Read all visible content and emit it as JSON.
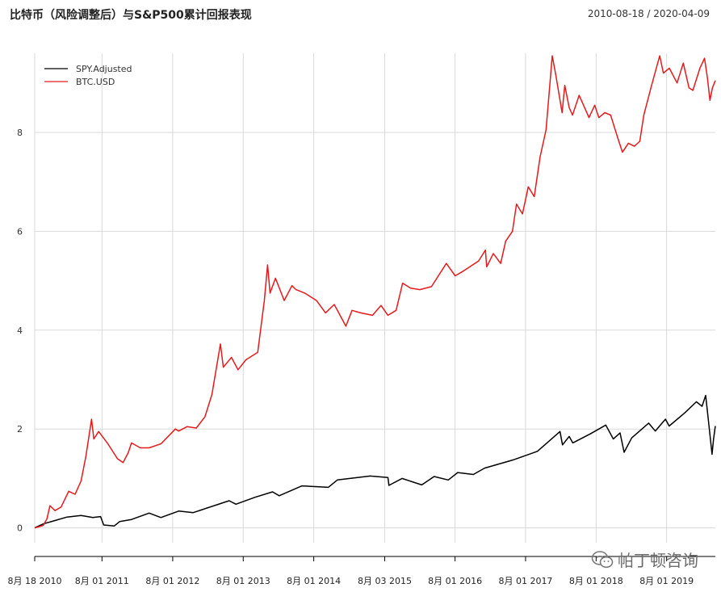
{
  "header": {
    "title": "比特币（风险调整后）与S&P500累计回报表现",
    "date_range": "2010-08-18 / 2020-04-09"
  },
  "watermark": {
    "text": "帕丁顿咨询",
    "icon": "wechat-icon"
  },
  "colors": {
    "spy": "#000000",
    "btc": "#e41a1c",
    "grid": "#d9d9d9",
    "axis": "#000000"
  },
  "chart_data": {
    "type": "line",
    "title": "比特币（风险调整后）与S&P500累计回报表现",
    "xlabel": "",
    "ylabel": "",
    "ylim": [
      -0.3,
      9.6
    ],
    "yticks": [
      0,
      2,
      4,
      6,
      8
    ],
    "grid": true,
    "legend_position": "top-left",
    "x_ticks": [
      {
        "date": "2010-08-18",
        "label": "8月 18 2010"
      },
      {
        "date": "2011-08-01",
        "label": "8月 01 2011"
      },
      {
        "date": "2012-08-01",
        "label": "8月 01 2012"
      },
      {
        "date": "2013-08-01",
        "label": "8月 01 2013"
      },
      {
        "date": "2014-08-01",
        "label": "8月 01 2014"
      },
      {
        "date": "2015-08-03",
        "label": "8月 03 2015"
      },
      {
        "date": "2016-08-01",
        "label": "8月 01 2016"
      },
      {
        "date": "2017-08-01",
        "label": "8月 01 2017"
      },
      {
        "date": "2018-08-01",
        "label": "8月 01 2018"
      },
      {
        "date": "2019-08-01",
        "label": "8月 01 2019"
      }
    ],
    "x_start": "2010-08-18",
    "x_end": "2020-04-09",
    "series": [
      {
        "name": "SPY.Adjusted",
        "color": "#000000",
        "points": [
          [
            "2010-08-18",
            0.0
          ],
          [
            "2010-10-01",
            0.08
          ],
          [
            "2010-12-01",
            0.15
          ],
          [
            "2011-02-01",
            0.22
          ],
          [
            "2011-04-15",
            0.25
          ],
          [
            "2011-06-15",
            0.21
          ],
          [
            "2011-07-25",
            0.23
          ],
          [
            "2011-08-10",
            0.06
          ],
          [
            "2011-10-04",
            0.04
          ],
          [
            "2011-11-01",
            0.13
          ],
          [
            "2012-01-01",
            0.17
          ],
          [
            "2012-04-01",
            0.3
          ],
          [
            "2012-06-01",
            0.21
          ],
          [
            "2012-09-01",
            0.34
          ],
          [
            "2012-11-15",
            0.31
          ],
          [
            "2013-01-01",
            0.37
          ],
          [
            "2013-05-20",
            0.55
          ],
          [
            "2013-06-24",
            0.48
          ],
          [
            "2013-10-01",
            0.62
          ],
          [
            "2013-12-31",
            0.73
          ],
          [
            "2014-02-03",
            0.65
          ],
          [
            "2014-06-01",
            0.85
          ],
          [
            "2014-10-15",
            0.82
          ],
          [
            "2014-12-01",
            0.97
          ],
          [
            "2015-05-20",
            1.05
          ],
          [
            "2015-08-20",
            1.02
          ],
          [
            "2015-08-25",
            0.86
          ],
          [
            "2015-11-01",
            1.0
          ],
          [
            "2016-02-11",
            0.87
          ],
          [
            "2016-04-15",
            1.04
          ],
          [
            "2016-06-27",
            0.97
          ],
          [
            "2016-08-15",
            1.12
          ],
          [
            "2016-11-04",
            1.08
          ],
          [
            "2017-01-01",
            1.21
          ],
          [
            "2017-06-01",
            1.38
          ],
          [
            "2017-10-01",
            1.55
          ],
          [
            "2018-01-26",
            1.95
          ],
          [
            "2018-02-08",
            1.68
          ],
          [
            "2018-03-15",
            1.85
          ],
          [
            "2018-04-02",
            1.72
          ],
          [
            "2018-07-01",
            1.9
          ],
          [
            "2018-09-20",
            2.08
          ],
          [
            "2018-10-29",
            1.8
          ],
          [
            "2018-12-03",
            1.92
          ],
          [
            "2018-12-24",
            1.53
          ],
          [
            "2019-02-01",
            1.82
          ],
          [
            "2019-04-30",
            2.12
          ],
          [
            "2019-06-03",
            1.96
          ],
          [
            "2019-07-26",
            2.2
          ],
          [
            "2019-08-14",
            2.06
          ],
          [
            "2019-11-01",
            2.32
          ],
          [
            "2020-01-02",
            2.55
          ],
          [
            "2020-01-31",
            2.46
          ],
          [
            "2020-02-19",
            2.68
          ],
          [
            "2020-03-02",
            2.25
          ],
          [
            "2020-03-23",
            1.49
          ],
          [
            "2020-03-31",
            1.8
          ],
          [
            "2020-04-09",
            2.06
          ]
        ]
      },
      {
        "name": "BTC.USD",
        "color": "#e41a1c",
        "points": [
          [
            "2010-08-18",
            0.0
          ],
          [
            "2010-10-01",
            0.05
          ],
          [
            "2010-10-20",
            0.18
          ],
          [
            "2010-11-05",
            0.45
          ],
          [
            "2010-12-01",
            0.35
          ],
          [
            "2011-01-01",
            0.42
          ],
          [
            "2011-02-10",
            0.74
          ],
          [
            "2011-03-15",
            0.68
          ],
          [
            "2011-04-15",
            0.95
          ],
          [
            "2011-05-10",
            1.45
          ],
          [
            "2011-06-08",
            2.2
          ],
          [
            "2011-06-20",
            1.8
          ],
          [
            "2011-07-15",
            1.95
          ],
          [
            "2011-09-01",
            1.7
          ],
          [
            "2011-10-20",
            1.4
          ],
          [
            "2011-11-18",
            1.32
          ],
          [
            "2011-12-15",
            1.52
          ],
          [
            "2012-01-01",
            1.72
          ],
          [
            "2012-02-15",
            1.62
          ],
          [
            "2012-04-01",
            1.62
          ],
          [
            "2012-06-01",
            1.7
          ],
          [
            "2012-08-15",
            2.0
          ],
          [
            "2012-09-01",
            1.96
          ],
          [
            "2012-10-15",
            2.05
          ],
          [
            "2012-12-01",
            2.02
          ],
          [
            "2013-01-15",
            2.25
          ],
          [
            "2013-02-20",
            2.7
          ],
          [
            "2013-04-05",
            3.72
          ],
          [
            "2013-04-20",
            3.25
          ],
          [
            "2013-06-01",
            3.45
          ],
          [
            "2013-07-05",
            3.2
          ],
          [
            "2013-08-15",
            3.4
          ],
          [
            "2013-10-15",
            3.55
          ],
          [
            "2013-11-18",
            4.6
          ],
          [
            "2013-12-05",
            5.32
          ],
          [
            "2013-12-18",
            4.75
          ],
          [
            "2014-01-15",
            5.05
          ],
          [
            "2014-03-01",
            4.6
          ],
          [
            "2014-04-10",
            4.9
          ],
          [
            "2014-05-01",
            4.82
          ],
          [
            "2014-06-15",
            4.75
          ],
          [
            "2014-08-15",
            4.6
          ],
          [
            "2014-10-01",
            4.35
          ],
          [
            "2014-11-15",
            4.52
          ],
          [
            "2015-01-14",
            4.08
          ],
          [
            "2015-02-15",
            4.4
          ],
          [
            "2015-04-01",
            4.35
          ],
          [
            "2015-06-01",
            4.3
          ],
          [
            "2015-07-15",
            4.5
          ],
          [
            "2015-08-20",
            4.3
          ],
          [
            "2015-10-01",
            4.4
          ],
          [
            "2015-11-04",
            4.95
          ],
          [
            "2015-12-15",
            4.85
          ],
          [
            "2016-02-01",
            4.82
          ],
          [
            "2016-04-01",
            4.88
          ],
          [
            "2016-06-17",
            5.35
          ],
          [
            "2016-08-02",
            5.1
          ],
          [
            "2016-09-15",
            5.2
          ],
          [
            "2016-12-01",
            5.4
          ],
          [
            "2017-01-05",
            5.62
          ],
          [
            "2017-01-12",
            5.28
          ],
          [
            "2017-02-15",
            5.55
          ],
          [
            "2017-03-25",
            5.35
          ],
          [
            "2017-04-20",
            5.8
          ],
          [
            "2017-05-25",
            6.0
          ],
          [
            "2017-06-15",
            6.55
          ],
          [
            "2017-07-16",
            6.35
          ],
          [
            "2017-08-15",
            6.9
          ],
          [
            "2017-09-15",
            6.7
          ],
          [
            "2017-10-15",
            7.5
          ],
          [
            "2017-11-15",
            8.05
          ],
          [
            "2017-12-17",
            9.55
          ],
          [
            "2018-01-05",
            9.15
          ],
          [
            "2018-02-06",
            8.4
          ],
          [
            "2018-02-20",
            8.95
          ],
          [
            "2018-03-15",
            8.5
          ],
          [
            "2018-04-01",
            8.35
          ],
          [
            "2018-05-05",
            8.75
          ],
          [
            "2018-06-25",
            8.3
          ],
          [
            "2018-07-25",
            8.55
          ],
          [
            "2018-08-15",
            8.3
          ],
          [
            "2018-09-15",
            8.4
          ],
          [
            "2018-10-15",
            8.35
          ],
          [
            "2018-11-20",
            7.9
          ],
          [
            "2018-12-15",
            7.6
          ],
          [
            "2019-01-15",
            7.78
          ],
          [
            "2019-02-15",
            7.72
          ],
          [
            "2019-03-15",
            7.82
          ],
          [
            "2019-04-05",
            8.35
          ],
          [
            "2019-05-15",
            8.95
          ],
          [
            "2019-06-26",
            9.55
          ],
          [
            "2019-07-15",
            9.2
          ],
          [
            "2019-08-15",
            9.3
          ],
          [
            "2019-09-24",
            9.0
          ],
          [
            "2019-10-26",
            9.4
          ],
          [
            "2019-11-25",
            8.9
          ],
          [
            "2019-12-15",
            8.85
          ],
          [
            "2020-01-20",
            9.3
          ],
          [
            "2020-02-13",
            9.5
          ],
          [
            "2020-02-28",
            9.1
          ],
          [
            "2020-03-12",
            8.65
          ],
          [
            "2020-03-25",
            8.9
          ],
          [
            "2020-04-09",
            9.05
          ]
        ]
      }
    ]
  }
}
